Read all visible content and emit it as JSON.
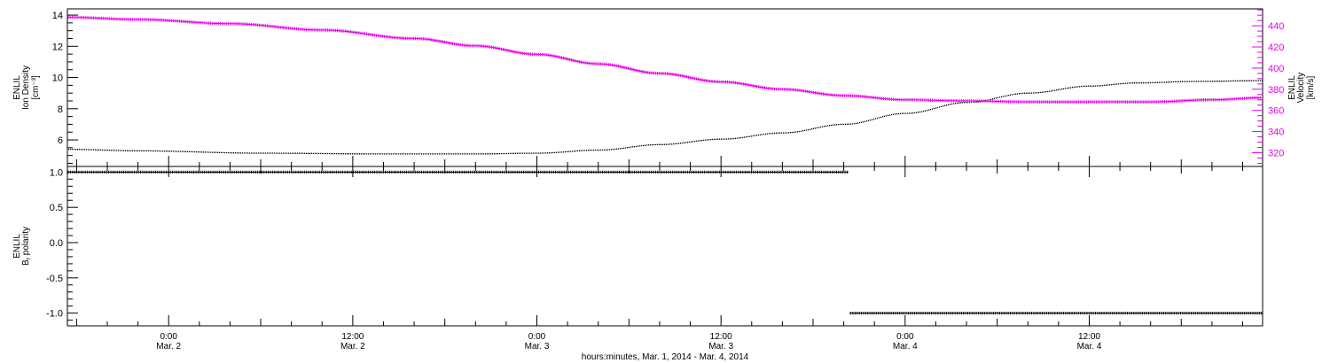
{
  "colors": {
    "axis": "#000000",
    "density": "#000000",
    "velocity": "#e600e6",
    "polarity": "#000000"
  },
  "chart_data": [
    {
      "type": "line",
      "panel": "top",
      "xlabel": "hours:minutes, Mar.  1, 2014 - Mar.  4, 2014",
      "x_ticks": [
        {
          "hours": 0,
          "time": "0:00",
          "date": "Mar. 2"
        },
        {
          "hours": 12,
          "time": "12:00",
          "date": "Mar. 2"
        },
        {
          "hours": 24,
          "time": "0:00",
          "date": "Mar. 3"
        },
        {
          "hours": 36,
          "time": "12:00",
          "date": "Mar. 3"
        },
        {
          "hours": 48,
          "time": "0:00",
          "date": "Mar. 4"
        },
        {
          "hours": 60,
          "time": "12:00",
          "date": "Mar. 4"
        }
      ],
      "xlim_hours": [
        -6.6,
        71.3
      ],
      "y_left": {
        "label_lines": [
          "ENLIL",
          "Ion Density",
          "[cm⁻³]"
        ],
        "ylim": [
          4.3,
          14.4
        ],
        "ticks": [
          6,
          8,
          10,
          12,
          14
        ],
        "tick_labels": [
          "6",
          "8",
          "10",
          "12",
          "14"
        ]
      },
      "y_right": {
        "label_lines": [
          "ENLIL",
          "Velocity",
          "[km/s]"
        ],
        "ylim": [
          307,
          456
        ],
        "ticks": [
          320,
          340,
          360,
          380,
          400,
          420,
          440
        ],
        "tick_labels": [
          "320",
          "340",
          "360",
          "380",
          "400",
          "420",
          "440"
        ]
      },
      "series": [
        {
          "axis": "left",
          "hours": [
            -6.6,
            -2,
            6,
            14,
            20,
            24,
            28,
            32,
            36,
            40,
            44,
            48,
            52,
            56,
            60,
            63,
            67,
            71.3
          ],
          "values": [
            5.4,
            5.3,
            5.15,
            5.1,
            5.1,
            5.15,
            5.35,
            5.7,
            6.05,
            6.45,
            7.0,
            7.7,
            8.4,
            9.0,
            9.45,
            9.65,
            9.75,
            9.8
          ]
        },
        {
          "axis": "right",
          "hours": [
            -6.6,
            -2,
            4,
            10,
            16,
            20,
            24,
            28,
            32,
            36,
            40,
            44,
            48,
            52,
            56,
            60,
            64,
            68,
            71.3
          ],
          "values": [
            448,
            446,
            442,
            436,
            428,
            421,
            413,
            404,
            395,
            387,
            380,
            374,
            370,
            369,
            368,
            368,
            368,
            370,
            372
          ]
        }
      ]
    },
    {
      "type": "scatter",
      "panel": "bottom",
      "y": {
        "label_lines": [
          "ENLIL",
          "B",
          "r",
          " polarity"
        ],
        "ylim": [
          -1.18,
          1.08
        ],
        "ticks": [
          -1.0,
          -0.5,
          0.0,
          0.5,
          1.0
        ],
        "tick_labels": [
          "-1.0",
          "-0.5",
          "0.0",
          "0.5",
          "1.0"
        ]
      },
      "series": [
        {
          "hours_range": [
            -6.6,
            44.4
          ],
          "value": 1.0
        },
        {
          "hours_range": [
            44.4,
            71.3
          ],
          "value": -1.0
        }
      ]
    }
  ]
}
